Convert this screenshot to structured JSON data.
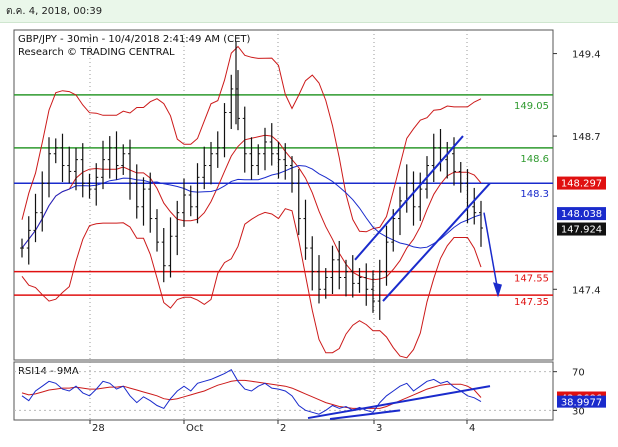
{
  "header": {
    "timestamp": "ต.ค. 4, 2018, 00:39"
  },
  "chart_data": {
    "type": "candlestick",
    "title": "GBP/JPY - 30min - 10/4/2018 2:41:49 AM (CET)",
    "subtitle": "Research © TRADING CENTRAL",
    "y_ticks": [
      "149.4",
      "148.7",
      "147.4"
    ],
    "ylim": [
      146.8,
      149.6
    ],
    "x_ticks": [
      "28",
      "Oct",
      "2",
      "3",
      "4"
    ],
    "levels": [
      {
        "label": "149.05",
        "value": 149.05,
        "color": "#2e9a2e"
      },
      {
        "label": "148.6",
        "value": 148.6,
        "color": "#2e9a2e"
      },
      {
        "label": "148.3",
        "value": 148.3,
        "color": "#1a2bcc"
      },
      {
        "label": "147.55",
        "value": 147.55,
        "color": "#e01010"
      },
      {
        "label": "147.35",
        "value": 147.35,
        "color": "#e01010"
      }
    ],
    "price_tags": [
      {
        "label": "148.297",
        "value": 148.297,
        "bg": "#e01010",
        "fg": "#ffffff"
      },
      {
        "label": "148.038",
        "value": 148.038,
        "bg": "#1a2bcc",
        "fg": "#ffffff"
      },
      {
        "label": "147.924",
        "value": 147.924,
        "bg": "#111111",
        "fg": "#ffffff"
      }
    ],
    "close_prices": [
      147.75,
      147.9,
      148.05,
      148.3,
      148.55,
      148.6,
      148.45,
      148.4,
      148.5,
      148.3,
      148.25,
      148.35,
      148.5,
      148.6,
      148.45,
      148.55,
      148.3,
      148.1,
      148.25,
      148.0,
      147.8,
      147.6,
      147.85,
      148.05,
      148.2,
      148.1,
      148.35,
      148.45,
      148.55,
      148.6,
      148.9,
      149.1,
      148.85,
      148.55,
      148.45,
      148.55,
      148.65,
      148.55,
      148.5,
      148.45,
      148.3,
      148.0,
      147.75,
      147.55,
      147.4,
      147.5,
      147.65,
      147.5,
      147.55,
      147.45,
      147.5,
      147.4,
      147.3,
      147.55,
      147.8,
      148.0,
      148.15,
      148.3,
      148.1,
      148.25,
      148.45,
      148.6,
      148.5,
      148.55,
      148.4,
      148.3,
      148.1,
      148.05,
      147.92
    ],
    "rsi": {
      "label": "RSI14 - 9MA",
      "y_ticks": [
        "70",
        "30"
      ],
      "ylim": [
        20,
        80
      ],
      "values": [
        45,
        40,
        50,
        55,
        60,
        58,
        52,
        50,
        55,
        48,
        45,
        52,
        60,
        58,
        52,
        55,
        45,
        38,
        44,
        40,
        35,
        32,
        42,
        50,
        55,
        50,
        58,
        60,
        62,
        65,
        68,
        72,
        60,
        52,
        50,
        55,
        58,
        53,
        52,
        50,
        45,
        35,
        30,
        28,
        26,
        30,
        35,
        32,
        34,
        30,
        33,
        30,
        28,
        38,
        45,
        50,
        55,
        58,
        50,
        55,
        60,
        62,
        58,
        60,
        54,
        50,
        45,
        43,
        39
      ],
      "ma_values": [
        48,
        46,
        47,
        49,
        51,
        52,
        53,
        53,
        54,
        53,
        52,
        52,
        53,
        54,
        54,
        55,
        53,
        51,
        49,
        47,
        45,
        42,
        41,
        42,
        44,
        46,
        48,
        50,
        53,
        56,
        58,
        60,
        61,
        61,
        60,
        59,
        58,
        57,
        56,
        55,
        53,
        50,
        47,
        44,
        41,
        38,
        36,
        34,
        33,
        32,
        32,
        32,
        32,
        32,
        34,
        37,
        40,
        43,
        46,
        49,
        52,
        54,
        56,
        57,
        57,
        57,
        55,
        51,
        43.27
      ],
      "price_tags": [
        {
          "label": "43.2686",
          "value": 43.2686,
          "bg": "#e01010",
          "fg": "#ffffff"
        },
        {
          "label": "38.9977",
          "value": 38.9977,
          "bg": "#1a2bcc",
          "fg": "#ffffff"
        }
      ]
    }
  }
}
